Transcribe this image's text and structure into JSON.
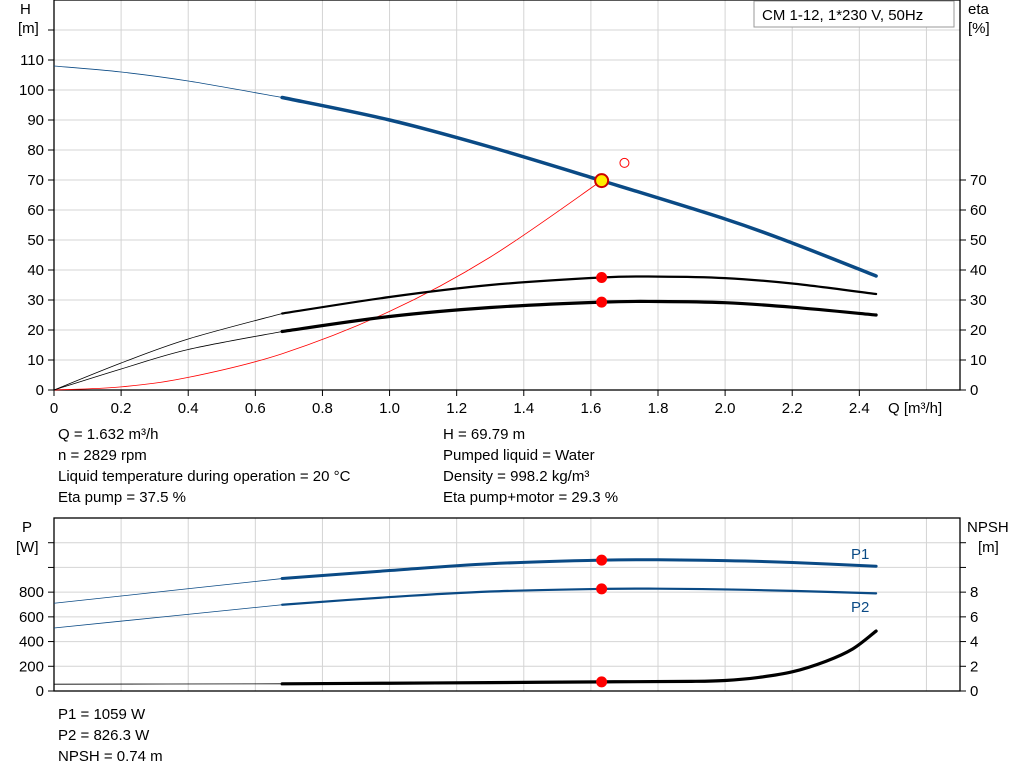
{
  "model_box": "CM 1-12, 1*230 V, 50Hz",
  "chart_data": [
    {
      "type": "line",
      "title": "",
      "xlabel": "Q [m³/h]",
      "ylabel_left": [
        "H",
        "[m]"
      ],
      "ylabel_right": [
        "eta",
        "[%]"
      ],
      "xlim": [
        0,
        2.7
      ],
      "ylim_left": [
        0,
        130
      ],
      "ylim_right": [
        0,
        130
      ],
      "x_ticks": [
        "0",
        "0.2",
        "0.4",
        "0.6",
        "0.8",
        "1.0",
        "1.2",
        "1.4",
        "1.6",
        "1.8",
        "2.0",
        "2.2",
        "2.4"
      ],
      "y_ticks_left": [
        "0",
        "10",
        "20",
        "30",
        "40",
        "50",
        "60",
        "70",
        "80",
        "90",
        "100",
        "110"
      ],
      "y_ticks_right": [
        "0",
        "10",
        "20",
        "30",
        "40",
        "50",
        "60",
        "70"
      ],
      "grid": true,
      "colors": {
        "H": "#0a4a85",
        "eta": "#000000",
        "system": "#ff0000",
        "duty": "#ff0000"
      },
      "series": [
        {
          "key": "H",
          "axis": "left",
          "x": [
            0,
            0.2,
            0.4,
            0.68,
            1.0,
            1.3,
            1.632,
            2.0,
            2.2,
            2.45
          ],
          "y": [
            108,
            106,
            103,
            97.5,
            90,
            81,
            69.79,
            57,
            49,
            38
          ],
          "operating_from": 0.68
        },
        {
          "key": "eta_pump",
          "axis": "right",
          "x": [
            0,
            0.2,
            0.4,
            0.68,
            1.0,
            1.3,
            1.632,
            1.8,
            2.0,
            2.2,
            2.45
          ],
          "y": [
            0,
            9,
            17,
            25.5,
            31,
            35,
            37.5,
            37.8,
            37.3,
            35.5,
            32
          ],
          "operating_from": 0.68
        },
        {
          "key": "eta_pump_motor",
          "axis": "right",
          "x": [
            0,
            0.2,
            0.4,
            0.68,
            1.0,
            1.3,
            1.632,
            1.8,
            2.0,
            2.2,
            2.45
          ],
          "y": [
            0,
            7,
            13.5,
            19.5,
            24.5,
            27.5,
            29.3,
            29.5,
            29.1,
            27.6,
            25
          ],
          "operating_from": 0.68
        },
        {
          "key": "system",
          "axis": "left",
          "x": [
            0,
            0.2,
            0.4,
            0.68,
            1.0,
            1.3,
            1.632
          ],
          "y": [
            0,
            1.05,
            4.2,
            12.1,
            26.2,
            44.3,
            69.79
          ],
          "operating_from": 99
        }
      ],
      "duty_point": {
        "Q": 1.632,
        "H": 69.79,
        "eta_pump": 37.5,
        "eta_pump_motor": 29.3
      },
      "requested_point": {
        "Q": 1.7,
        "H": 75.7
      }
    },
    {
      "type": "line",
      "title": "",
      "ylabel_left": [
        "P",
        "[W]"
      ],
      "ylabel_right": [
        "NPSH",
        "[m]"
      ],
      "xlim": [
        0,
        2.7
      ],
      "ylim_left": [
        0,
        1400
      ],
      "ylim_right": [
        0,
        14
      ],
      "y_ticks_left": [
        "0",
        "200",
        "400",
        "600",
        "800"
      ],
      "y_ticks_right": [
        "0",
        "2",
        "4",
        "6",
        "8"
      ],
      "grid": true,
      "colors": {
        "P": "#0a4a85",
        "NPSH": "#000000",
        "duty": "#ff0000"
      },
      "series": [
        {
          "key": "P1",
          "name": "P1",
          "axis": "left",
          "x": [
            0,
            0.68,
            1.0,
            1.3,
            1.632,
            1.8,
            2.0,
            2.2,
            2.45
          ],
          "y": [
            710,
            910,
            975,
            1030,
            1059,
            1062,
            1055,
            1040,
            1010
          ],
          "operating_from": 0.68
        },
        {
          "key": "P2",
          "name": "P2",
          "axis": "left",
          "x": [
            0,
            0.68,
            1.0,
            1.3,
            1.632,
            1.8,
            2.0,
            2.2,
            2.45
          ],
          "y": [
            510,
            698,
            760,
            805,
            826.3,
            828,
            822,
            810,
            790
          ],
          "operating_from": 0.68
        },
        {
          "key": "NPSH",
          "axis": "right",
          "x": [
            0,
            0.68,
            1.0,
            1.3,
            1.632,
            1.9,
            2.0,
            2.1,
            2.2,
            2.3,
            2.38,
            2.45
          ],
          "y": [
            0.55,
            0.58,
            0.63,
            0.68,
            0.74,
            0.78,
            0.85,
            1.1,
            1.55,
            2.4,
            3.4,
            4.85
          ],
          "operating_from": 0.68
        }
      ],
      "duty_point": {
        "Q": 1.632,
        "P1": 1059,
        "P2": 826.3,
        "NPSH": 0.74
      }
    }
  ],
  "info_top": {
    "left": [
      "Q = 1.632 m³/h",
      "n = 2829 rpm",
      "Liquid temperature during operation = 20 °C",
      "Eta pump = 37.5 %"
    ],
    "right": [
      "H = 69.79 m",
      "Pumped liquid = Water",
      "Density = 998.2 kg/m³",
      "Eta pump+motor = 29.3 %"
    ]
  },
  "info_bottom": [
    "P1 = 1059 W",
    "P2 = 826.3 W",
    "NPSH = 0.74 m"
  ]
}
